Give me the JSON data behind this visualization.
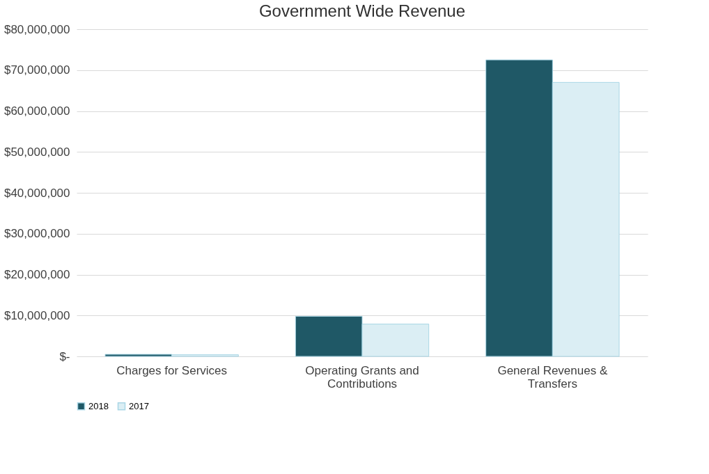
{
  "chart_data": {
    "type": "bar",
    "title": "Government Wide Revenue",
    "categories": [
      "Charges for Services",
      "Operating Grants and Contributions",
      "General Revenues & Transfers"
    ],
    "series": [
      {
        "name": "2018",
        "color": "#1f5866",
        "values": [
          500000,
          9800000,
          72500000
        ]
      },
      {
        "name": "2017",
        "color": "#dbeef4",
        "values": [
          400000,
          7900000,
          67000000
        ]
      }
    ],
    "ylim": [
      0,
      80000000
    ],
    "yticks": [
      {
        "value": 0,
        "label": "$-"
      },
      {
        "value": 10000000,
        "label": "$10,000,000"
      },
      {
        "value": 20000000,
        "label": "$20,000,000"
      },
      {
        "value": 30000000,
        "label": "$30,000,000"
      },
      {
        "value": 40000000,
        "label": "$40,000,000"
      },
      {
        "value": 50000000,
        "label": "$50,000,000"
      },
      {
        "value": 60000000,
        "label": "$60,000,000"
      },
      {
        "value": 70000000,
        "label": "$70,000,000"
      },
      {
        "value": 80000000,
        "label": "$80,000,000"
      }
    ],
    "grid": "y",
    "legend": "bottom"
  }
}
